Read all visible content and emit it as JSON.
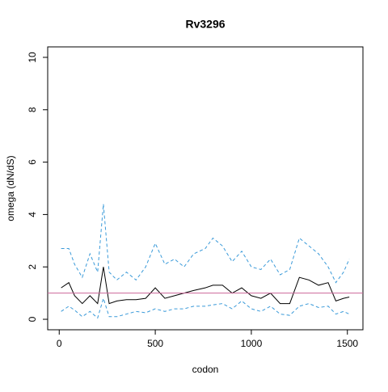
{
  "chart_data": {
    "type": "line",
    "title": "Rv3296",
    "x_label": "codon",
    "y_label": "omega (dN/dS)",
    "x": [
      10,
      50,
      80,
      120,
      160,
      200,
      230,
      260,
      300,
      350,
      400,
      450,
      500,
      550,
      600,
      650,
      700,
      760,
      800,
      850,
      900,
      950,
      1000,
      1050,
      1100,
      1150,
      1200,
      1250,
      1300,
      1350,
      1400,
      1440,
      1480,
      1510
    ],
    "series": [
      {
        "color": "#3a9ad9",
        "linestyle": "dashed",
        "values": [
          2.7,
          2.7,
          2.1,
          1.6,
          2.5,
          1.8,
          4.4,
          1.8,
          1.5,
          1.8,
          1.5,
          2.0,
          2.9,
          2.1,
          2.3,
          2.0,
          2.5,
          2.7,
          3.1,
          2.8,
          2.2,
          2.6,
          2.0,
          1.9,
          2.3,
          1.7,
          1.9,
          3.1,
          2.8,
          2.5,
          2.0,
          1.4,
          1.8,
          2.3
        ]
      },
      {
        "color": "#000000",
        "linestyle": "solid",
        "values": [
          1.2,
          1.4,
          0.9,
          0.6,
          0.9,
          0.6,
          2.0,
          0.6,
          0.7,
          0.75,
          0.75,
          0.8,
          1.2,
          0.8,
          0.9,
          1.0,
          1.1,
          1.2,
          1.3,
          1.3,
          1.0,
          1.2,
          0.9,
          0.8,
          1.0,
          0.6,
          0.6,
          1.6,
          1.5,
          1.3,
          1.4,
          0.7,
          0.8,
          0.85
        ]
      },
      {
        "color": "#3a9ad9",
        "linestyle": "dashed",
        "values": [
          0.3,
          0.5,
          0.35,
          0.1,
          0.3,
          0.05,
          0.8,
          0.1,
          0.1,
          0.2,
          0.3,
          0.25,
          0.4,
          0.3,
          0.4,
          0.4,
          0.5,
          0.5,
          0.55,
          0.6,
          0.4,
          0.7,
          0.4,
          0.3,
          0.5,
          0.2,
          0.15,
          0.5,
          0.6,
          0.45,
          0.5,
          0.2,
          0.3,
          0.2
        ]
      }
    ],
    "hline": 1,
    "hline_color": "#cc6699",
    "xlim": [
      -60,
      1581
    ],
    "xticks": [
      0,
      500,
      1000,
      1500
    ],
    "ylim": [
      -0.4,
      10.4
    ],
    "yticks": [
      0,
      2,
      4,
      6,
      8,
      10
    ]
  }
}
